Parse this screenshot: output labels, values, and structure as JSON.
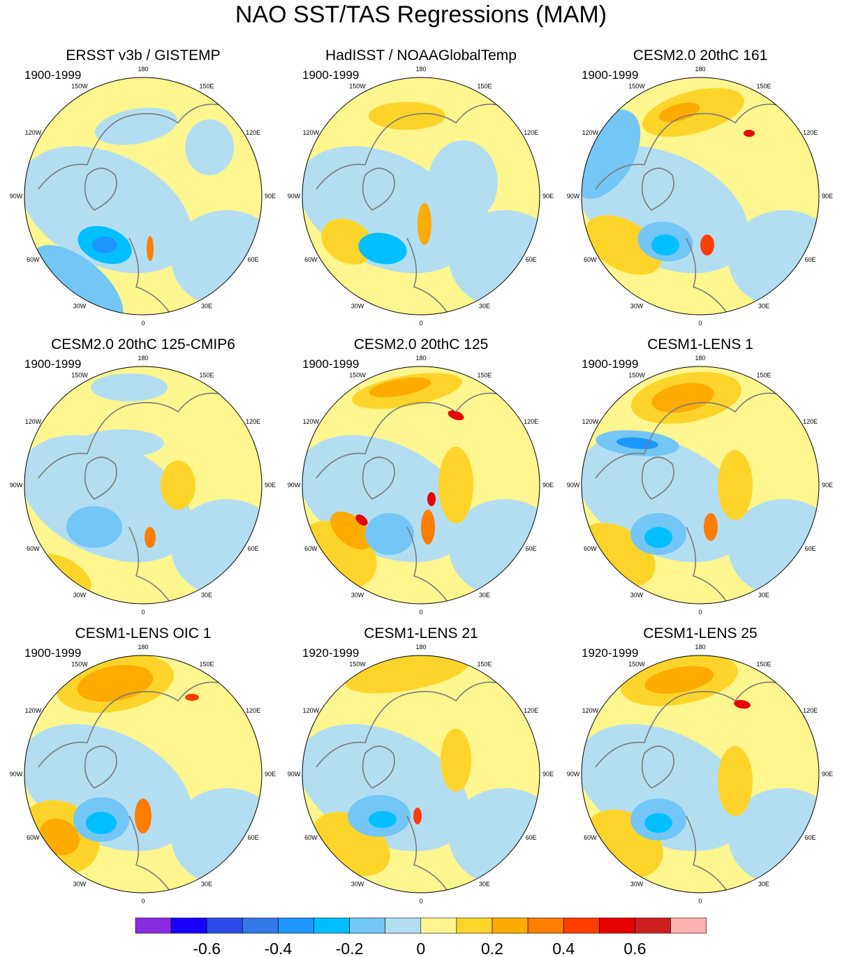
{
  "chart_data": {
    "type": "heatmap",
    "title": "NAO SST/TAS Regressions (MAM)",
    "projection": "north-polar-stereographic",
    "longitude_labels": [
      "180",
      "150E",
      "120E",
      "90E",
      "60E",
      "30E",
      "0",
      "30W",
      "60W",
      "90W",
      "120W",
      "150W"
    ],
    "colorbar": {
      "colors": [
        "#8a2be2",
        "#1a00ff",
        "#2a4be8",
        "#3478e8",
        "#1e96ff",
        "#00bfff",
        "#73c6f5",
        "#b3def2",
        "#fff68f",
        "#ffd42a",
        "#ffab00",
        "#ff7d00",
        "#ff3e00",
        "#e60000",
        "#cd1f1f",
        "#ffb0b0"
      ],
      "tick_labels": [
        "-0.6",
        "-0.4",
        "-0.2",
        "0",
        "0.2",
        "0.4",
        "0.6"
      ],
      "tick_values": [
        -0.6,
        -0.4,
        -0.2,
        0,
        0.2,
        0.4,
        0.6
      ],
      "levels": [
        -0.7,
        -0.6,
        -0.5,
        -0.4,
        -0.3,
        -0.2,
        -0.1,
        0,
        0.1,
        0.2,
        0.3,
        0.4,
        0.5,
        0.6,
        0.7
      ]
    },
    "panels": [
      {
        "title": "ERSST v3b / GISTEMP",
        "period": "1900-1999"
      },
      {
        "title": "HadISST / NOAAGlobalTemp",
        "period": "1900-1999"
      },
      {
        "title": "CESM2.0 20thC 161",
        "period": "1900-1999"
      },
      {
        "title": "CESM2.0 20thC 125-CMIP6",
        "period": "1900-1999"
      },
      {
        "title": "CESM2.0 20thC 125",
        "period": "1900-1999"
      },
      {
        "title": "CESM1-LENS 1",
        "period": "1900-1999"
      },
      {
        "title": "CESM1-LENS OIC 1",
        "period": "1900-1999"
      },
      {
        "title": "CESM1-LENS 21",
        "period": "1920-1999"
      },
      {
        "title": "CESM1-LENS 25",
        "period": "1920-1999"
      }
    ]
  }
}
